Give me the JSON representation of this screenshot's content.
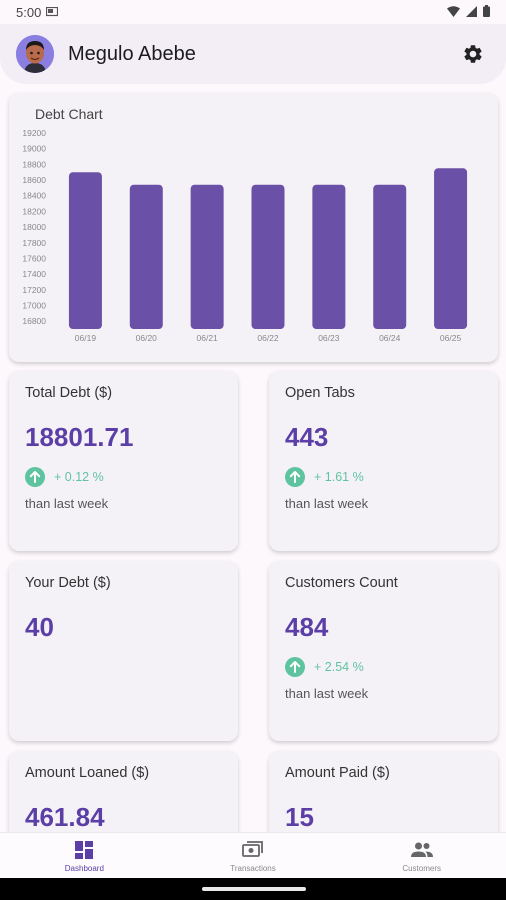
{
  "status_bar": {
    "time": "5:00"
  },
  "header": {
    "user_name": "Megulo Abebe"
  },
  "chart_card": {
    "title": "Debt Chart"
  },
  "chart_data": {
    "type": "bar",
    "title": "Debt Chart",
    "categories": [
      "06/19",
      "06/20",
      "06/21",
      "06/22",
      "06/23",
      "06/24",
      "06/25"
    ],
    "values": [
      18700,
      18540,
      18540,
      18540,
      18540,
      18540,
      18750
    ],
    "ylim": [
      16700,
      19200
    ],
    "yticks": [
      16800,
      17000,
      17200,
      17400,
      17600,
      17800,
      18000,
      18200,
      18400,
      18600,
      18800,
      19000,
      19200
    ],
    "bar_color": "#6a50a7",
    "grid": false
  },
  "stats": {
    "total_debt": {
      "label": "Total Debt ($)",
      "value": "18801.71",
      "trend": "+ 0.12 %",
      "sub": "than last week"
    },
    "open_tabs": {
      "label": "Open Tabs",
      "value": "443",
      "trend": "+ 1.61 %",
      "sub": "than last week"
    },
    "your_debt": {
      "label": "Your Debt ($)",
      "value": "40"
    },
    "customers_count": {
      "label": "Customers Count",
      "value": "484",
      "trend": "+ 2.54 %",
      "sub": "than last week"
    },
    "amount_loaned": {
      "label": "Amount Loaned ($)",
      "value": "461.84"
    },
    "amount_paid": {
      "label": "Amount Paid ($)",
      "value": "15"
    }
  },
  "nav": {
    "items": [
      {
        "label": "Dashboard",
        "icon": "dashboard-icon",
        "active": true
      },
      {
        "label": "Transactions",
        "icon": "transactions-icon",
        "active": false
      },
      {
        "label": "Customers",
        "icon": "customers-icon",
        "active": false
      }
    ]
  },
  "colors": {
    "accent": "#5b3fa6",
    "trend": "#5ec4a0",
    "bar": "#6a50a7"
  }
}
